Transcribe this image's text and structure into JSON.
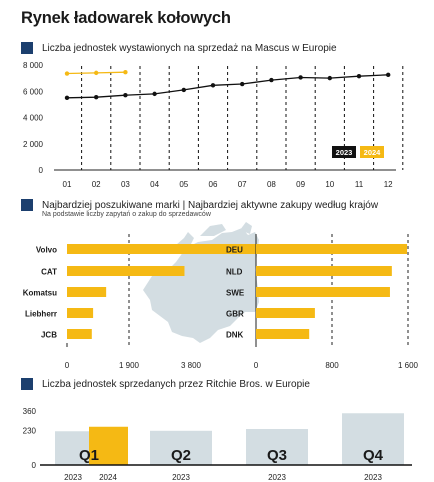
{
  "page": {
    "title": "Rynek ładowarek kołowych"
  },
  "section1": {
    "heading": "Liczba jednostek wystawionych na sprzedaż na Mascus w Europie"
  },
  "section2": {
    "heading": "Najbardziej poszukiwane marki | Najbardziej aktywne zakupy według krajów",
    "subheading": "Na podstawie liczby zapytań o zakup do sprzedawców"
  },
  "section3": {
    "heading": "Liczba jednostek sprzedanych przez Ritchie Bros. w Europie"
  },
  "colors": {
    "accent": "#f5b914",
    "navy": "#1c3f6e",
    "grey_bar": "#d3dde2",
    "map": "#d3dde2",
    "line": "#111111"
  },
  "chart_data": [
    {
      "type": "line",
      "categories": [
        "01",
        "02",
        "03",
        "04",
        "05",
        "06",
        "07",
        "08",
        "09",
        "10",
        "11",
        "12"
      ],
      "series": [
        {
          "name": "2023",
          "values": [
            5500,
            5550,
            5700,
            5800,
            6100,
            6450,
            6550,
            6850,
            7050,
            7000,
            7150,
            7250
          ]
        },
        {
          "name": "2024",
          "values": [
            7350,
            7400,
            7450,
            null,
            null,
            null,
            null,
            null,
            null,
            null,
            null,
            null
          ]
        }
      ],
      "ylim": [
        0,
        8000
      ],
      "yticks": [
        "0",
        "2 000",
        "4 000",
        "6 000",
        "8 000"
      ],
      "legend": [
        "2023",
        "2024"
      ]
    },
    {
      "type": "bar",
      "orientation": "horizontal",
      "categories": [
        "Volvo",
        "CAT",
        "Komatsu",
        "Liebherr",
        "JCB"
      ],
      "values": [
        3700,
        1800,
        600,
        400,
        380
      ],
      "xlim": [
        0,
        3800
      ],
      "xticks": [
        "0",
        "1 900",
        "3 800"
      ]
    },
    {
      "type": "bar",
      "orientation": "horizontal",
      "categories": [
        "DEU",
        "NLD",
        "SWE",
        "GBR",
        "DNK"
      ],
      "values": [
        1590,
        1430,
        1410,
        620,
        560
      ],
      "xlim": [
        0,
        1600
      ],
      "xticks": [
        "0",
        "800",
        "1 600"
      ]
    },
    {
      "type": "bar",
      "categories": [
        "Q1",
        "Q2",
        "Q3",
        "Q4"
      ],
      "series": [
        {
          "name": "2023",
          "values": [
            225,
            228,
            240,
            345
          ]
        },
        {
          "name": "2024",
          "values": [
            255,
            null,
            null,
            null
          ]
        }
      ],
      "year_labels": [
        "2023",
        "2024"
      ],
      "ylim": [
        0,
        360
      ],
      "yticks": [
        "0",
        "230",
        "360"
      ]
    }
  ]
}
